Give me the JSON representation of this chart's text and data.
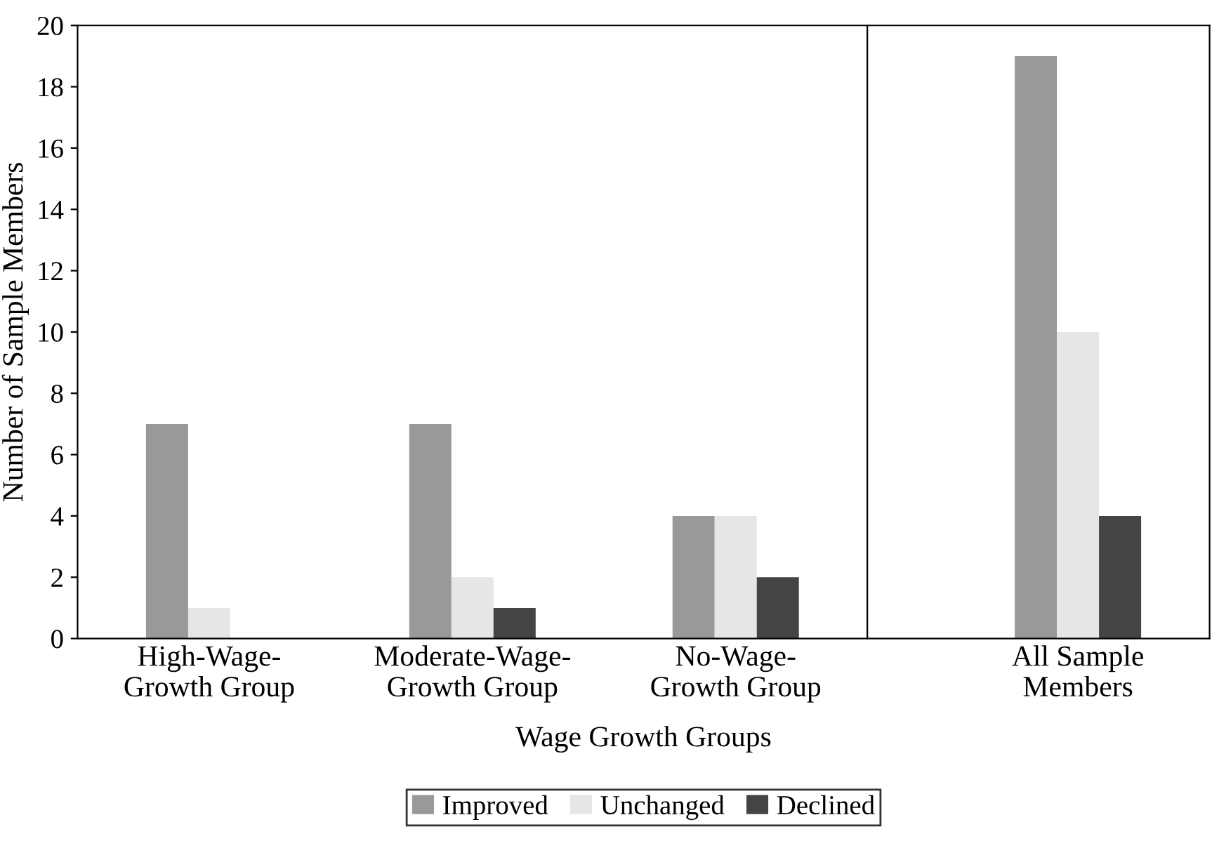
{
  "chart_data": [
    {
      "type": "bar",
      "xlabel": "Wage Growth Groups",
      "ylabel": "Number of Sample Members",
      "categories": [
        "High-Wage-\nGrowth Group",
        "Moderate-Wage-\nGrowth Group",
        "No-Wage-\nGrowth Group"
      ],
      "series": [
        {
          "name": "Improved",
          "color": "#999999",
          "values": [
            7,
            7,
            4
          ]
        },
        {
          "name": "Unchanged",
          "color": "#e6e6e6",
          "values": [
            1,
            2,
            4
          ]
        },
        {
          "name": "Declined",
          "color": "#444444",
          "values": [
            0,
            1,
            2
          ]
        }
      ],
      "ylim": [
        0,
        20
      ],
      "yticks": [
        0,
        2,
        4,
        6,
        8,
        10,
        12,
        14,
        16,
        18,
        20
      ],
      "grid": false,
      "legend": "bottom"
    },
    {
      "type": "bar",
      "categories": [
        "All Sample\nMembers"
      ],
      "series": [
        {
          "color": "#999999",
          "values": [
            19
          ]
        },
        {
          "color": "#e6e6e6",
          "values": [
            10
          ]
        },
        {
          "color": "#444444",
          "values": [
            4
          ]
        }
      ],
      "ylim": [
        0,
        20
      ],
      "tick_labels": "x",
      "grid": false
    }
  ]
}
